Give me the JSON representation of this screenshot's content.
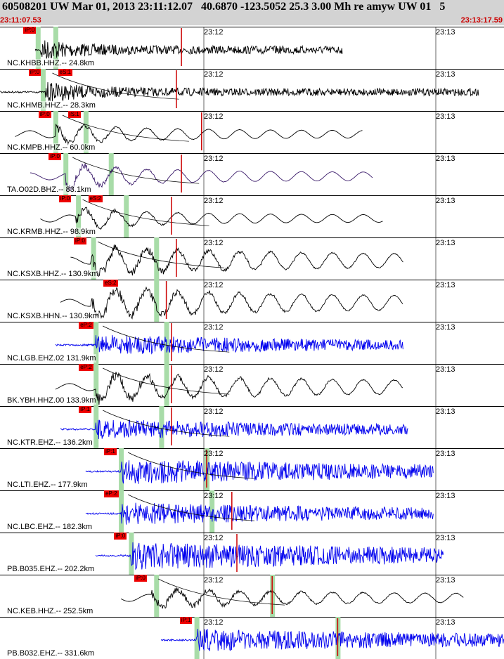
{
  "header": {
    "title": "60508201 UW Mar 01, 2013 23:11:12.07   40.6870 -123.5052 25.3 3.00 Mh re amyw UW 01   5",
    "time_start": "23:11:07.53",
    "time_end": "23:13:17.59"
  },
  "colors": {
    "header_bg": "#d3d3d3",
    "pick_red": "#ee0000",
    "window_green": "#a8dca8",
    "trace_black": "#000000",
    "trace_blue": "#0000ee",
    "trace_purple": "#3a1a6a",
    "synthetic_red": "#cc0000"
  },
  "time_marks": [
    "23:12",
    "23:13"
  ],
  "traces": [
    {
      "label": "NC.KHBB.HHZ.-- 24.8km",
      "color": "black",
      "amp": 0.6,
      "start": 0.07,
      "onset": 0.08,
      "decay": 0.08,
      "end": 0.68,
      "picks": [
        "iP:0"
      ],
      "picks2": [],
      "spike": 0.36,
      "synth": false,
      "green": [
        0.075,
        0.11
      ],
      "lowfreq": false
    },
    {
      "label": "NC.KHMB.HHZ.-- 28.3km",
      "color": "black",
      "amp": 0.55,
      "start": 0.0,
      "onset": 0.09,
      "decay": 0.1,
      "end": 0.95,
      "picks": [
        "iP:0"
      ],
      "picks2": [
        "eS:1"
      ],
      "spike": 0.35,
      "synth": true,
      "green": [
        0.085
      ],
      "lowfreq": false
    },
    {
      "label": "NC.KMPB.HHZ.-- 60.0km",
      "color": "black",
      "amp": 0.7,
      "start": 0.03,
      "onset": 0.11,
      "decay": 0.2,
      "end": 0.72,
      "picks": [
        "iP:0"
      ],
      "picks2": [
        "iS:1"
      ],
      "spike": 0.4,
      "synth": true,
      "green": [
        0.11,
        0.17
      ],
      "lowfreq": true
    },
    {
      "label": "TA.O02D.BHZ.-- 83.1km",
      "color": "purple",
      "amp": 0.8,
      "start": 0.06,
      "onset": 0.13,
      "decay": 0.2,
      "end": 0.74,
      "picks": [
        "iP:0"
      ],
      "picks2": [],
      "spike": 0.36,
      "synth": true,
      "green": [
        0.13,
        0.22
      ],
      "lowfreq": true
    },
    {
      "label": "NC.KRMB.HHZ.-- 98.9km",
      "color": "black",
      "amp": 0.7,
      "start": 0.08,
      "onset": 0.15,
      "decay": 0.2,
      "end": 0.76,
      "picks": [
        "iP:0"
      ],
      "picks2": [
        "eS:2"
      ],
      "spike": 0.34,
      "synth": true,
      "green": [
        0.155,
        0.25
      ],
      "lowfreq": true
    },
    {
      "label": "NC.KSXB.HHZ.-- 130.9km",
      "color": "black",
      "amp": 0.9,
      "start": 0.14,
      "onset": 0.18,
      "decay": 0.5,
      "end": 0.8,
      "picks": [
        "iP:0"
      ],
      "picks2": [],
      "spike": 0.35,
      "synth": true,
      "green": [
        0.185,
        0.31
      ],
      "lowfreq": true
    },
    {
      "label": "NC.KSXB.HHN.-- 130.9km",
      "color": "black",
      "amp": 0.95,
      "start": 0.12,
      "onset": 0.18,
      "decay": 0.5,
      "end": 0.8,
      "picks": [],
      "picks2": [
        "eS:2"
      ],
      "spike": 0.33,
      "synth": false,
      "green": [
        0.31
      ],
      "lowfreq": true
    },
    {
      "label": "NC.LGB.EHZ.02 131.9km",
      "color": "blue",
      "amp": 0.55,
      "start": 0.11,
      "onset": 0.19,
      "decay": 0.4,
      "end": 0.8,
      "picks": [
        "eP:2"
      ],
      "picks2": [],
      "spike": 0.34,
      "synth": true,
      "green": [
        0.19,
        0.33
      ],
      "lowfreq": false
    },
    {
      "label": "BK.YBH.HHZ.00 133.9km",
      "color": "black",
      "amp": 0.9,
      "start": 0.11,
      "onset": 0.19,
      "decay": 0.5,
      "end": 0.8,
      "picks": [
        "eP:2"
      ],
      "picks2": [],
      "spike": 0.34,
      "synth": true,
      "green": [
        0.19,
        0.33
      ],
      "lowfreq": true
    },
    {
      "label": "NC.KTR.EHZ.-- 136.2km",
      "color": "blue",
      "amp": 0.55,
      "start": 0.12,
      "onset": 0.19,
      "decay": 0.45,
      "end": 0.81,
      "picks": [
        "iP:1"
      ],
      "picks2": [],
      "spike": 0.34,
      "synth": true,
      "green": [
        0.19,
        0.32
      ],
      "lowfreq": false
    },
    {
      "label": "NC.LTI.EHZ.-- 177.9km",
      "color": "blue",
      "amp": 0.7,
      "start": 0.17,
      "onset": 0.24,
      "decay": 0.5,
      "end": 0.86,
      "picks": [
        "iP:1"
      ],
      "picks2": [],
      "spike": 0.41,
      "synth": true,
      "green": [
        0.24,
        0.41
      ],
      "lowfreq": false
    },
    {
      "label": "NC.LBC.EHZ.-- 182.3km",
      "color": "blue",
      "amp": 0.6,
      "start": 0.17,
      "onset": 0.24,
      "decay": 0.5,
      "end": 0.86,
      "picks": [
        "eP:2"
      ],
      "picks2": [],
      "spike": 0.46,
      "synth": true,
      "green": [
        0.24,
        0.42
      ],
      "lowfreq": false
    },
    {
      "label": "PB.B035.EHZ.-- 202.2km",
      "color": "blue",
      "amp": 0.75,
      "start": 0.19,
      "onset": 0.26,
      "decay": 0.6,
      "end": 0.88,
      "picks": [
        "iP:0"
      ],
      "picks2": [],
      "spike": 0.47,
      "synth": false,
      "green": [
        0.26
      ],
      "lowfreq": false
    },
    {
      "label": "NC.KEB.HHZ.-- 252.5km",
      "color": "black",
      "amp": 0.6,
      "start": 0.24,
      "onset": 0.3,
      "decay": 0.5,
      "end": 0.92,
      "picks": [
        "iP:0"
      ],
      "picks2": [],
      "spike": 0.54,
      "synth": true,
      "green": [
        0.31,
        0.54
      ],
      "lowfreq": true
    },
    {
      "label": "PB.B032.EHZ.-- 331.6km",
      "color": "blue",
      "amp": 0.6,
      "start": 0.32,
      "onset": 0.39,
      "decay": 0.6,
      "end": 1.0,
      "picks": [
        "iP:1"
      ],
      "picks2": [],
      "spike": 0.67,
      "synth": false,
      "green": [
        0.39,
        0.67
      ],
      "lowfreq": false
    }
  ]
}
